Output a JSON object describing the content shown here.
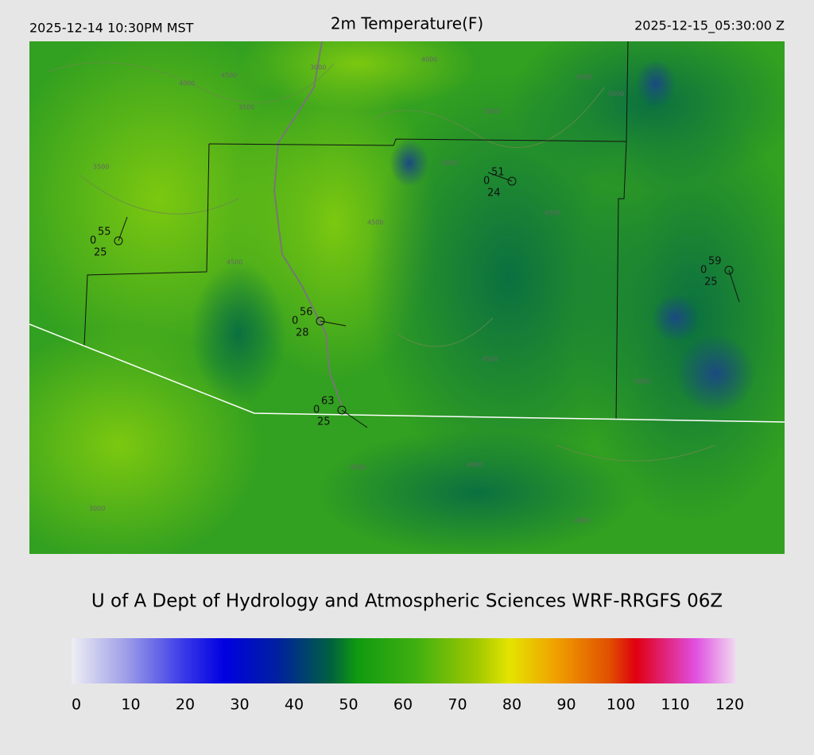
{
  "header": {
    "left": "2025-12-14 10:30PM MST",
    "title": "2m Temperature(F)",
    "right": "2025-12-15_05:30:00 Z"
  },
  "stations": [
    {
      "temp": "55",
      "wind": "0",
      "dew": "25"
    },
    {
      "temp": "51",
      "wind": "0",
      "dew": "24"
    },
    {
      "temp": "59",
      "wind": "0",
      "dew": "25"
    },
    {
      "temp": "56",
      "wind": "0",
      "dew": "28"
    },
    {
      "temp": "63",
      "wind": "0",
      "dew": "25"
    }
  ],
  "contour_labels": [
    "4000",
    "4500",
    "3500",
    "3000",
    "4000",
    "4500",
    "5000",
    "5000",
    "3500",
    "4500",
    "5000",
    "4500",
    "5000",
    "4500",
    "3000",
    "4000",
    "4500",
    "5000",
    "4000"
  ],
  "footer": "U of A Dept of Hydrology and Atmospheric Sciences WRF-RRGFS 06Z",
  "colorbar": {
    "ticks": [
      0,
      10,
      20,
      30,
      40,
      50,
      60,
      70,
      80,
      90,
      100,
      110,
      120
    ]
  }
}
